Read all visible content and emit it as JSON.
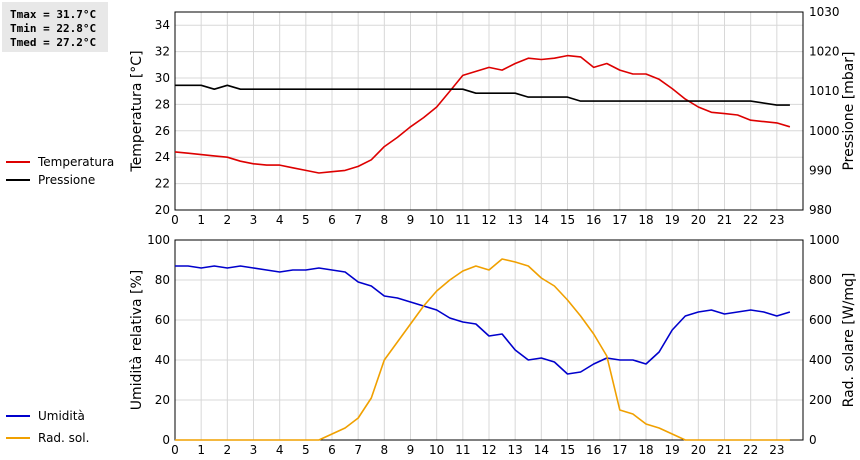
{
  "stats": {
    "tmax": "Tmax = 31.7°C",
    "tmin": "Tmin = 22.8°C",
    "tmed": "Tmed = 27.2°C"
  },
  "chart_data": [
    {
      "type": "line",
      "title": "",
      "xlabel": "",
      "ylabel": "Temperatura [°C]",
      "ylabel_right": "Pressione [mbar]",
      "xlim": [
        0,
        24
      ],
      "xticks": [
        0,
        1,
        2,
        3,
        4,
        5,
        6,
        7,
        8,
        9,
        10,
        11,
        12,
        13,
        14,
        15,
        16,
        17,
        18,
        19,
        20,
        21,
        22,
        23
      ],
      "ylim": [
        20,
        35
      ],
      "yticks": [
        20,
        22,
        24,
        26,
        28,
        30,
        32,
        34
      ],
      "ylim_right": [
        980,
        1030
      ],
      "yticks_right": [
        980,
        990,
        1000,
        1010,
        1020,
        1030
      ],
      "grid": true,
      "legend_position": "left",
      "series": [
        {
          "name": "Temperatura",
          "color": "#dd0000",
          "axis": "left",
          "x": [
            0,
            0.5,
            1,
            1.5,
            2,
            2.5,
            3,
            3.5,
            4,
            4.5,
            5,
            5.5,
            6,
            6.5,
            7,
            7.5,
            8,
            8.5,
            9,
            9.5,
            10,
            10.5,
            11,
            11.5,
            12,
            12.5,
            13,
            13.5,
            14,
            14.5,
            15,
            15.5,
            16,
            16.5,
            17,
            17.5,
            18,
            18.5,
            19,
            19.5,
            20,
            20.5,
            21,
            21.5,
            22,
            22.5,
            23,
            23.5
          ],
          "y": [
            24.4,
            24.3,
            24.2,
            24.1,
            24.0,
            23.7,
            23.5,
            23.4,
            23.4,
            23.2,
            23.0,
            22.8,
            22.9,
            23.0,
            23.3,
            23.8,
            24.8,
            25.5,
            26.3,
            27.0,
            27.8,
            29.0,
            30.2,
            30.5,
            30.8,
            30.6,
            31.1,
            31.5,
            31.4,
            31.5,
            31.7,
            31.6,
            30.8,
            31.1,
            30.6,
            30.3,
            30.3,
            29.9,
            29.2,
            28.4,
            27.8,
            27.4,
            27.3,
            27.2,
            26.8,
            26.7,
            26.6,
            26.3
          ]
        },
        {
          "name": "Pressione",
          "color": "#000000",
          "axis": "right",
          "x": [
            0,
            1,
            1.5,
            2,
            2.5,
            3,
            4,
            5,
            6,
            7,
            8,
            9,
            10,
            11,
            11.5,
            12,
            13,
            13.5,
            14,
            15,
            15.5,
            16,
            17,
            18,
            19,
            20,
            21,
            22,
            23,
            23.5
          ],
          "y": [
            1011.5,
            1011.5,
            1010.5,
            1011.5,
            1010.5,
            1010.5,
            1010.5,
            1010.5,
            1010.5,
            1010.5,
            1010.5,
            1010.5,
            1010.5,
            1010.5,
            1009.5,
            1009.5,
            1009.5,
            1008.5,
            1008.5,
            1008.5,
            1007.5,
            1007.5,
            1007.5,
            1007.5,
            1007.5,
            1007.5,
            1007.5,
            1007.5,
            1006.5,
            1006.5
          ]
        }
      ]
    },
    {
      "type": "line",
      "title": "",
      "xlabel": "",
      "ylabel": "Umidità relativa [%]",
      "ylabel_right": "Rad. solare [W/mq]",
      "xlim": [
        0,
        24
      ],
      "xticks": [
        0,
        1,
        2,
        3,
        4,
        5,
        6,
        7,
        8,
        9,
        10,
        11,
        12,
        13,
        14,
        15,
        16,
        17,
        18,
        19,
        20,
        21,
        22,
        23
      ],
      "ylim": [
        0,
        100
      ],
      "yticks": [
        0,
        20,
        40,
        60,
        80,
        100
      ],
      "ylim_right": [
        0,
        1000
      ],
      "yticks_right": [
        0,
        200,
        400,
        600,
        800,
        1000
      ],
      "grid": true,
      "legend_position": "left",
      "series": [
        {
          "name": "Umidità",
          "color": "#0000cc",
          "axis": "left",
          "x": [
            0,
            0.5,
            1,
            1.5,
            2,
            2.5,
            3,
            3.5,
            4,
            4.5,
            5,
            5.5,
            6,
            6.5,
            7,
            7.5,
            8,
            8.5,
            9,
            9.5,
            10,
            10.5,
            11,
            11.5,
            12,
            12.5,
            13,
            13.5,
            14,
            14.5,
            15,
            15.5,
            16,
            16.5,
            17,
            17.5,
            18,
            18.5,
            19,
            19.5,
            20,
            20.5,
            21,
            21.5,
            22,
            22.5,
            23,
            23.5
          ],
          "y": [
            87,
            87,
            86,
            87,
            86,
            87,
            86,
            85,
            84,
            85,
            85,
            86,
            85,
            84,
            79,
            77,
            72,
            71,
            69,
            67,
            65,
            61,
            59,
            58,
            52,
            53,
            45,
            40,
            41,
            39,
            33,
            34,
            38,
            41,
            40,
            40,
            38,
            44,
            55,
            62,
            64,
            65,
            63,
            64,
            65,
            64,
            62,
            64
          ]
        },
        {
          "name": "Rad. sol.",
          "color": "#f0a000",
          "axis": "right",
          "x": [
            0,
            1,
            2,
            3,
            4,
            5,
            5.5,
            6,
            6.5,
            7,
            7.5,
            8,
            8.5,
            9,
            9.5,
            10,
            10.5,
            11,
            11.5,
            12,
            12.5,
            13,
            13.5,
            14,
            14.5,
            15,
            15.5,
            16,
            16.5,
            17,
            17.5,
            18,
            18.5,
            19,
            19.5,
            20,
            21,
            22,
            23,
            23.5
          ],
          "y": [
            0,
            0,
            0,
            0,
            0,
            0,
            0,
            30,
            60,
            110,
            210,
            400,
            490,
            580,
            670,
            745,
            800,
            845,
            870,
            850,
            905,
            890,
            870,
            810,
            770,
            700,
            620,
            530,
            420,
            150,
            130,
            80,
            60,
            30,
            0,
            0,
            0,
            0,
            0,
            0
          ]
        }
      ]
    }
  ]
}
